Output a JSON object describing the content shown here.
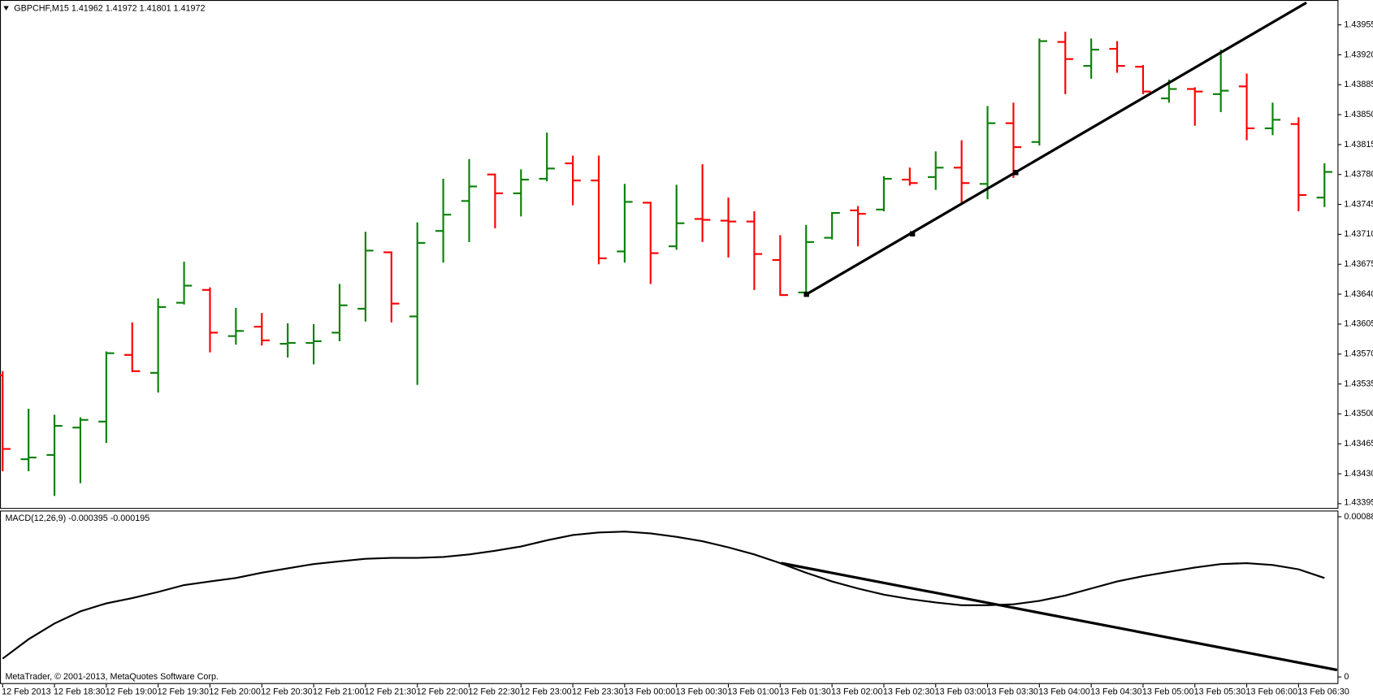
{
  "chart_data": [
    {
      "type": "ohlc",
      "title": "GBPCHF,M15  1.41962 1.41972 1.41801 1.41972",
      "categories": [
        "12 Feb 2013",
        null,
        "12 Feb 18:30",
        null,
        "12 Feb 19:00",
        null,
        "12 Feb 19:30",
        null,
        "12 Feb 20:00",
        null,
        "12 Feb 20:30",
        null,
        "12 Feb 21:00",
        null,
        "12 Feb 21:30",
        null,
        "12 Feb 22:00",
        null,
        "12 Feb 22:30",
        null,
        "12 Feb 23:00",
        null,
        "12 Feb 23:30",
        null,
        "13 Feb 00:00",
        null,
        "13 Feb 00:30",
        null,
        "13 Feb 01:00",
        null,
        "13 Feb 01:30",
        null,
        "13 Feb 02:00",
        null,
        "13 Feb 02:30",
        null,
        "13 Feb 03:00",
        null,
        "13 Feb 03:30",
        null,
        "13 Feb 04:00",
        null,
        "13 Feb 04:30",
        null,
        "13 Feb 05:00",
        null,
        "13 Feb 05:30",
        null,
        "13 Feb 06:00",
        null,
        "13 Feb 06:30",
        null
      ],
      "open": [
        1.43545,
        1.43447,
        1.43452,
        1.43484,
        1.43491,
        1.43569,
        1.43548,
        1.4363,
        1.43645,
        1.43591,
        1.43602,
        1.43582,
        1.43583,
        1.43595,
        1.43623,
        1.43689,
        1.43614,
        1.43714,
        1.43749,
        1.4378,
        1.43758,
        1.43775,
        1.43793,
        1.43773,
        1.4369,
        1.43747,
        1.43696,
        1.43728,
        1.43726,
        1.43725,
        1.4368,
        1.43642,
        1.43706,
        1.43738,
        1.43739,
        1.43774,
        1.43777,
        1.43788,
        1.43769,
        1.4384,
        1.43818,
        1.43935,
        1.43907,
        1.43927,
        1.43906,
        1.43869,
        1.4388,
        1.43874,
        1.43883,
        1.43834,
        1.43839,
        1.43753
      ],
      "high": [
        1.43549,
        1.43505,
        1.43498,
        1.43495,
        1.43572,
        1.43606,
        1.43634,
        1.43677,
        1.43647,
        1.43623,
        1.43617,
        1.43605,
        1.43604,
        1.43651,
        1.43712,
        1.43689,
        1.43723,
        1.43774,
        1.43797,
        1.4378,
        1.43785,
        1.43828,
        1.43801,
        1.43801,
        1.43768,
        1.43747,
        1.43767,
        1.43791,
        1.43752,
        1.43736,
        1.43708,
        1.4372,
        1.43735,
        1.43742,
        1.43777,
        1.43787,
        1.43806,
        1.43819,
        1.43859,
        1.43863,
        1.43938,
        1.43946,
        1.43938,
        1.43935,
        1.43907,
        1.4389,
        1.43881,
        1.43925,
        1.43897,
        1.43863,
        1.43846,
        1.43792
      ],
      "low": [
        1.43434,
        1.43434,
        1.43405,
        1.4342,
        1.43467,
        1.4355,
        1.43526,
        1.43629,
        1.43573,
        1.43582,
        1.43581,
        1.43567,
        1.43559,
        1.43586,
        1.43609,
        1.43608,
        1.43535,
        1.43678,
        1.43702,
        1.43718,
        1.43732,
        1.43773,
        1.43745,
        1.43676,
        1.43678,
        1.43653,
        1.43693,
        1.43702,
        1.43684,
        1.43646,
        1.43639,
        1.4364,
        1.43705,
        1.43697,
        1.43738,
        1.43768,
        1.43763,
        1.43747,
        1.43752,
        1.43777,
        1.43815,
        1.43875,
        1.43893,
        1.439,
        1.43875,
        1.43865,
        1.43838,
        1.43854,
        1.43821,
        1.43827,
        1.43738,
        1.43743
      ],
      "close": [
        1.43459,
        1.43449,
        1.43486,
        1.43493,
        1.43571,
        1.4355,
        1.43625,
        1.4365,
        1.43595,
        1.43597,
        1.43586,
        1.43583,
        1.43585,
        1.43627,
        1.43691,
        1.43629,
        1.437,
        1.43733,
        1.43766,
        1.43758,
        1.43774,
        1.43787,
        1.43773,
        1.43682,
        1.43748,
        1.43688,
        1.43723,
        1.43727,
        1.43725,
        1.43687,
        1.43639,
        1.43701,
        1.43735,
        1.43734,
        1.43775,
        1.4377,
        1.43788,
        1.4377,
        1.4384,
        1.43812,
        1.43936,
        1.43915,
        1.43926,
        1.43907,
        1.43877,
        1.4388,
        1.43877,
        1.43878,
        1.43834,
        1.43844,
        1.43756,
        1.43783
      ],
      "up_color": "#0a800a",
      "down_color": "#ff0000",
      "ylim": [
        1.4339,
        1.43981
      ],
      "yticks": [
        1.43955,
        {
          "value": 1.4392,
          "label": "1.43920"
        },
        1.43885,
        {
          "value": 1.4385,
          "label": "1.43850"
        },
        1.43815,
        {
          "value": 1.4378,
          "label": "1.43780"
        },
        1.43745,
        {
          "value": 1.4371,
          "label": "1.43710"
        },
        1.43675,
        {
          "value": 1.4364,
          "label": "1.43640"
        },
        1.43605,
        {
          "value": 1.4357,
          "label": "1.43570"
        },
        1.43535,
        {
          "value": 1.435,
          "label": "1.43500"
        },
        1.43465,
        {
          "value": 1.4343,
          "label": "1.43430"
        },
        1.43395
      ]
    },
    {
      "type": "line",
      "title": "MACD(12,26,9) -0.000395 -0.000195",
      "series": [
        {
          "color": "#000000",
          "values": [
            0.000101,
            0.000208,
            0.000295,
            0.000362,
            0.000406,
            0.000435,
            0.000469,
            0.000507,
            0.000527,
            0.000546,
            0.000575,
            0.000599,
            0.000623,
            0.000638,
            0.000652,
            0.000657,
            0.000657,
            0.000662,
            0.000676,
            0.000696,
            0.00072,
            0.000754,
            0.000783,
            0.000797,
            0.000802,
            0.000792,
            0.000773,
            0.000749,
            0.000715,
            0.000676,
            0.000628,
            0.000575,
            0.000527,
            0.000488,
            0.000454,
            0.00043,
            0.000411,
            0.000396,
            0.000396,
            0.000401,
            0.00042,
            0.000449,
            0.000488,
            0.000527,
            0.000556,
            0.00058,
            0.000604,
            0.000623,
            0.000628,
            0.000618,
            0.000594,
            0.000546
          ]
        }
      ],
      "ylim": [
        -3.4e-05,
        0.000918
      ],
      "yticks": [
        0.000884,
        0
      ],
      "footer": "MetaTrader, © 2001-2013, MetaQuotes Software Corp."
    }
  ]
}
